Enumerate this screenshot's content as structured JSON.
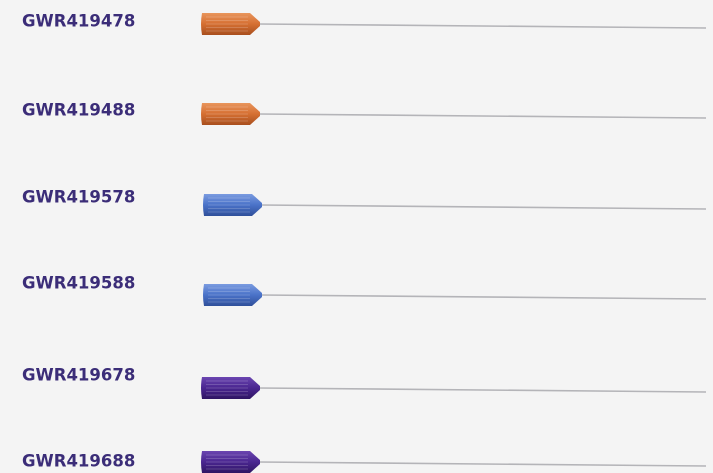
{
  "products": [
    {
      "code": "GWR419478"
    },
    {
      "code": "GWR419488"
    },
    {
      "code": "GWR419578"
    },
    {
      "code": "GWR419588"
    },
    {
      "code": "GWR419678"
    },
    {
      "code": "GWR419688"
    }
  ]
}
